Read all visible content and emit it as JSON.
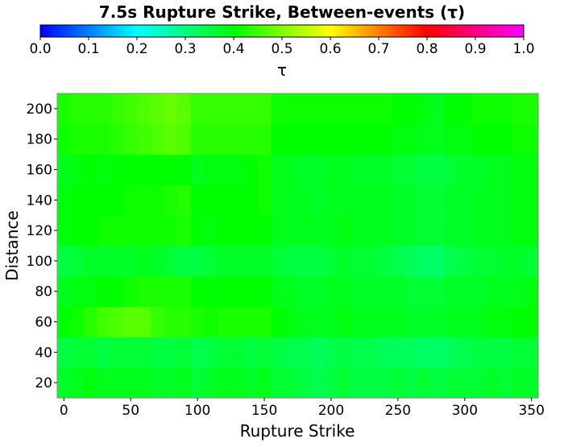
{
  "chart_data": {
    "type": "heatmap",
    "title": "7.5s Rupture Strike, Between-events (τ)",
    "xlabel": "Rupture Strike",
    "ylabel": "Distance",
    "xlim": [
      -5,
      355
    ],
    "ylim": [
      10,
      210
    ],
    "x_ticks": [
      "0",
      "50",
      "100",
      "150",
      "200",
      "250",
      "300",
      "350"
    ],
    "y_ticks": [
      "20",
      "40",
      "60",
      "80",
      "100",
      "120",
      "140",
      "160",
      "180",
      "200"
    ],
    "colorbar": {
      "label": "τ",
      "range": [
        0.0,
        1.0
      ],
      "ticks": [
        "0.0",
        "0.1",
        "0.2",
        "0.3",
        "0.4",
        "0.5",
        "0.6",
        "0.7",
        "0.8",
        "0.9",
        "1.0"
      ],
      "colors": [
        "#0000ff",
        "#00ffff",
        "#00ff00",
        "#ffff00",
        "#ff0000",
        "#ff00ff"
      ]
    },
    "x": [
      0,
      10,
      20,
      30,
      40,
      50,
      60,
      70,
      80,
      90,
      100,
      110,
      120,
      130,
      140,
      150,
      160,
      170,
      180,
      190,
      200,
      210,
      220,
      230,
      240,
      250,
      260,
      270,
      280,
      290,
      300,
      310,
      320,
      330,
      340,
      350
    ],
    "y": [
      20,
      40,
      60,
      80,
      100,
      120,
      140,
      160,
      180,
      200
    ],
    "values": [
      [
        0.37,
        0.38,
        0.39,
        0.38,
        0.38,
        0.38,
        0.38,
        0.37,
        0.37,
        0.38,
        0.36,
        0.37,
        0.38,
        0.38,
        0.37,
        0.38,
        0.36,
        0.36,
        0.35,
        0.34,
        0.35,
        0.36,
        0.35,
        0.35,
        0.35,
        0.36,
        0.35,
        0.36,
        0.35,
        0.36,
        0.36,
        0.36,
        0.37,
        0.36,
        0.37,
        0.37
      ],
      [
        0.35,
        0.36,
        0.36,
        0.35,
        0.36,
        0.36,
        0.36,
        0.35,
        0.35,
        0.36,
        0.34,
        0.35,
        0.36,
        0.36,
        0.35,
        0.36,
        0.35,
        0.34,
        0.34,
        0.33,
        0.34,
        0.35,
        0.34,
        0.34,
        0.33,
        0.33,
        0.33,
        0.32,
        0.32,
        0.33,
        0.34,
        0.35,
        0.35,
        0.35,
        0.36,
        0.36
      ],
      [
        0.4,
        0.41,
        0.43,
        0.45,
        0.46,
        0.47,
        0.47,
        0.44,
        0.43,
        0.43,
        0.42,
        0.41,
        0.42,
        0.42,
        0.42,
        0.42,
        0.4,
        0.39,
        0.38,
        0.38,
        0.38,
        0.39,
        0.38,
        0.38,
        0.38,
        0.38,
        0.37,
        0.37,
        0.37,
        0.38,
        0.38,
        0.38,
        0.39,
        0.39,
        0.4,
        0.4
      ],
      [
        0.38,
        0.39,
        0.39,
        0.4,
        0.4,
        0.41,
        0.42,
        0.42,
        0.42,
        0.42,
        0.4,
        0.4,
        0.4,
        0.4,
        0.4,
        0.4,
        0.38,
        0.38,
        0.37,
        0.37,
        0.38,
        0.38,
        0.37,
        0.37,
        0.37,
        0.37,
        0.36,
        0.36,
        0.36,
        0.37,
        0.37,
        0.37,
        0.38,
        0.38,
        0.38,
        0.39
      ],
      [
        0.35,
        0.36,
        0.37,
        0.37,
        0.37,
        0.37,
        0.38,
        0.37,
        0.36,
        0.35,
        0.35,
        0.36,
        0.37,
        0.37,
        0.37,
        0.37,
        0.36,
        0.35,
        0.35,
        0.35,
        0.36,
        0.37,
        0.36,
        0.36,
        0.35,
        0.34,
        0.33,
        0.32,
        0.32,
        0.34,
        0.35,
        0.36,
        0.36,
        0.37,
        0.37,
        0.36
      ],
      [
        0.39,
        0.4,
        0.4,
        0.41,
        0.41,
        0.41,
        0.41,
        0.41,
        0.41,
        0.42,
        0.4,
        0.39,
        0.4,
        0.4,
        0.4,
        0.4,
        0.38,
        0.38,
        0.38,
        0.38,
        0.38,
        0.39,
        0.38,
        0.38,
        0.38,
        0.37,
        0.37,
        0.36,
        0.36,
        0.37,
        0.37,
        0.38,
        0.38,
        0.38,
        0.39,
        0.39
      ],
      [
        0.39,
        0.4,
        0.4,
        0.4,
        0.4,
        0.41,
        0.41,
        0.41,
        0.42,
        0.43,
        0.4,
        0.4,
        0.4,
        0.4,
        0.4,
        0.41,
        0.38,
        0.38,
        0.38,
        0.37,
        0.38,
        0.38,
        0.38,
        0.38,
        0.38,
        0.37,
        0.37,
        0.36,
        0.36,
        0.37,
        0.37,
        0.38,
        0.38,
        0.38,
        0.39,
        0.39
      ],
      [
        0.38,
        0.39,
        0.4,
        0.39,
        0.4,
        0.4,
        0.4,
        0.4,
        0.4,
        0.4,
        0.38,
        0.39,
        0.39,
        0.39,
        0.4,
        0.41,
        0.38,
        0.38,
        0.37,
        0.37,
        0.38,
        0.38,
        0.37,
        0.37,
        0.37,
        0.36,
        0.36,
        0.35,
        0.35,
        0.36,
        0.37,
        0.37,
        0.38,
        0.38,
        0.39,
        0.39
      ],
      [
        0.41,
        0.42,
        0.42,
        0.42,
        0.43,
        0.44,
        0.45,
        0.46,
        0.47,
        0.46,
        0.43,
        0.43,
        0.43,
        0.43,
        0.43,
        0.43,
        0.4,
        0.4,
        0.4,
        0.4,
        0.4,
        0.4,
        0.4,
        0.4,
        0.4,
        0.39,
        0.39,
        0.38,
        0.38,
        0.39,
        0.39,
        0.4,
        0.4,
        0.4,
        0.41,
        0.41
      ],
      [
        0.42,
        0.43,
        0.43,
        0.43,
        0.44,
        0.45,
        0.46,
        0.47,
        0.48,
        0.47,
        0.44,
        0.44,
        0.44,
        0.44,
        0.44,
        0.44,
        0.41,
        0.41,
        0.41,
        0.41,
        0.41,
        0.41,
        0.41,
        0.41,
        0.41,
        0.4,
        0.4,
        0.39,
        0.38,
        0.4,
        0.4,
        0.41,
        0.41,
        0.41,
        0.42,
        0.42
      ]
    ]
  }
}
